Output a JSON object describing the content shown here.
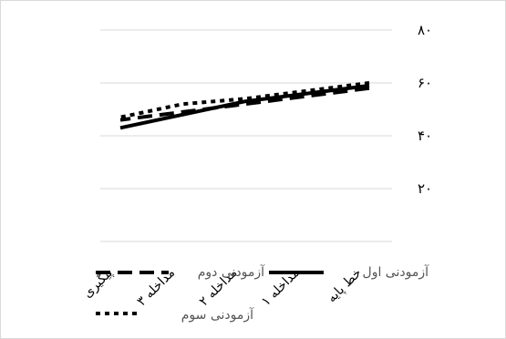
{
  "chart_data": {
    "type": "line",
    "categories": [
      "خط پایه",
      "مداخله ۱",
      "مداخله ۲",
      "مداخله ۳",
      "پیگیری"
    ],
    "y_ticks": [
      "۲۰",
      "۴۰",
      "۶۰",
      "۸۰"
    ],
    "ylim": [
      0,
      80
    ],
    "grid": true,
    "legend_position": "bottom",
    "series": [
      {
        "name": "آزمودنی اول",
        "style": "solid",
        "values": [
          59,
          56,
          53,
          48,
          43
        ]
      },
      {
        "name": "آزمودنی دوم",
        "style": "dash",
        "values": [
          58,
          55,
          52,
          49,
          46
        ]
      },
      {
        "name": "آزمودنی سوم",
        "style": "dot",
        "values": [
          60,
          57,
          54,
          52,
          47
        ]
      }
    ]
  }
}
